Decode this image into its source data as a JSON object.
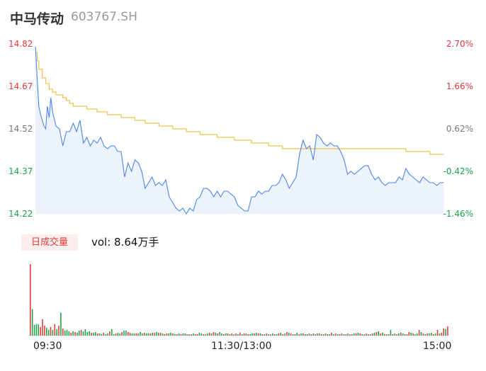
{
  "header": {
    "name": "中马传动",
    "code": "603767.SH"
  },
  "legend": {
    "badge": "日成交量",
    "vol_label": "vol: 8.64万手"
  },
  "colors": {
    "price": "#4a86e8",
    "avg": "#f5c04a",
    "up": "#e23b3b",
    "down": "#1aa34a",
    "fill": "#edf3fd"
  },
  "chart_data": [
    {
      "type": "line",
      "title": "",
      "xlabel": "",
      "ylabel": "",
      "ylim": [
        14.22,
        14.82
      ],
      "y_ticks": [
        "14.82",
        "14.67",
        "14.52",
        "14.37",
        "14.22"
      ],
      "y_right_ticks": [
        "2.70%",
        "1.66%",
        "0.62%",
        "-0.42%",
        "-1.46%"
      ],
      "x_ticks": [
        "09:30",
        "11:30/13:00",
        "15:00"
      ],
      "series": [
        {
          "role": "price",
          "x": [
            0,
            1,
            2,
            3,
            4,
            5,
            6,
            7,
            8,
            9,
            10,
            12,
            14,
            16,
            18,
            20,
            22,
            24,
            26,
            28,
            30,
            32,
            34,
            36,
            38,
            40,
            42,
            44,
            46,
            48,
            50,
            52,
            54,
            56,
            58,
            60,
            62,
            64,
            66,
            68,
            70,
            72,
            74,
            76,
            78,
            80,
            82,
            84,
            86,
            88,
            90,
            92,
            94,
            96,
            98,
            100,
            102,
            104,
            106,
            108,
            110,
            112,
            114,
            116,
            118,
            120,
            122,
            124,
            126,
            128,
            130,
            132,
            134,
            136,
            138,
            140,
            142,
            144,
            146,
            148,
            150,
            152,
            154,
            156,
            158,
            160,
            162,
            164,
            166,
            168,
            170,
            172,
            174,
            176,
            178,
            180,
            182,
            184,
            186,
            188,
            190,
            192,
            194,
            196,
            198,
            200,
            202,
            204,
            206,
            208,
            210,
            212,
            214,
            216,
            218,
            220,
            222,
            224,
            226,
            228,
            230,
            232,
            234,
            236,
            238
          ],
          "values": [
            14.81,
            14.7,
            14.6,
            14.57,
            14.55,
            14.53,
            14.52,
            14.6,
            14.56,
            14.63,
            14.58,
            14.53,
            14.52,
            14.46,
            14.51,
            14.51,
            14.54,
            14.51,
            14.55,
            14.47,
            14.49,
            14.46,
            14.48,
            14.47,
            14.49,
            14.46,
            14.45,
            14.46,
            14.46,
            14.44,
            14.44,
            14.35,
            14.4,
            14.37,
            14.41,
            14.4,
            14.37,
            14.31,
            14.33,
            14.35,
            14.32,
            14.33,
            14.32,
            14.34,
            14.28,
            14.26,
            14.24,
            14.23,
            14.24,
            14.22,
            14.24,
            14.23,
            14.27,
            14.28,
            14.31,
            14.31,
            14.3,
            14.28,
            14.3,
            14.28,
            14.3,
            14.3,
            14.29,
            14.28,
            14.25,
            14.24,
            14.23,
            14.23,
            14.28,
            14.28,
            14.3,
            14.29,
            14.3,
            14.3,
            14.32,
            14.32,
            14.33,
            14.36,
            14.34,
            14.31,
            14.33,
            14.35,
            14.43,
            14.48,
            14.45,
            14.46,
            14.41,
            14.5,
            14.49,
            14.47,
            14.46,
            14.47,
            14.46,
            14.46,
            14.44,
            14.41,
            14.36,
            14.37,
            14.36,
            14.37,
            14.38,
            14.39,
            14.39,
            14.36,
            14.34,
            14.35,
            14.33,
            14.32,
            14.33,
            14.33,
            14.33,
            14.35,
            14.34,
            14.38,
            14.36,
            14.35,
            14.34,
            14.33,
            14.35,
            14.34,
            14.33,
            14.33,
            14.32,
            14.33,
            14.33
          ]
        },
        {
          "role": "avg",
          "x": [
            0,
            1,
            2,
            4,
            6,
            8,
            10,
            12,
            14,
            16,
            18,
            20,
            22,
            26,
            30,
            36,
            42,
            50,
            58,
            64,
            72,
            80,
            88,
            92,
            96,
            106,
            116,
            126,
            136,
            144,
            150,
            160,
            168,
            176,
            184,
            192,
            200,
            208,
            216,
            224,
            230,
            238
          ],
          "values": [
            14.79,
            14.76,
            14.73,
            14.7,
            14.68,
            14.66,
            14.65,
            14.64,
            14.64,
            14.63,
            14.62,
            14.61,
            14.6,
            14.6,
            14.59,
            14.58,
            14.57,
            14.56,
            14.55,
            14.54,
            14.53,
            14.52,
            14.51,
            14.51,
            14.5,
            14.49,
            14.48,
            14.47,
            14.46,
            14.45,
            14.45,
            14.45,
            14.45,
            14.45,
            14.45,
            14.45,
            14.45,
            14.45,
            14.44,
            14.44,
            14.43,
            14.43
          ]
        }
      ]
    },
    {
      "type": "bar",
      "title": "",
      "legend": "日成交量",
      "ylim": [
        0,
        100
      ],
      "values": [
        100,
        37,
        15,
        16,
        16,
        12,
        23,
        14,
        11,
        8,
        12,
        8,
        16,
        9,
        14,
        32,
        10,
        7,
        8,
        6,
        4,
        6,
        5,
        4,
        7,
        8,
        6,
        9,
        5,
        6,
        4,
        4,
        5,
        3,
        3,
        2,
        4,
        2,
        3,
        6,
        9,
        2,
        3,
        4,
        3,
        5,
        7,
        7,
        5,
        4,
        3,
        3,
        3,
        3,
        5,
        3,
        4,
        3,
        3,
        3,
        4,
        4,
        5,
        4,
        4,
        3,
        2,
        3,
        3,
        4,
        3,
        2,
        2,
        3,
        2,
        3,
        3,
        2,
        2,
        2,
        3,
        2,
        2,
        4,
        3,
        2,
        2,
        3,
        4,
        3,
        5,
        4,
        3,
        5,
        3,
        2,
        3,
        3,
        2,
        3,
        2,
        3,
        2,
        4,
        2,
        3,
        3,
        2,
        2,
        3,
        3,
        4,
        3,
        3,
        2,
        2,
        3,
        2,
        2,
        3,
        2,
        2,
        3,
        4,
        2,
        3,
        5,
        4,
        3,
        2,
        2,
        4,
        2,
        3,
        3,
        2,
        2,
        3,
        2,
        3,
        2,
        3,
        3,
        2,
        2,
        3,
        2,
        2,
        4,
        2,
        3,
        2,
        2,
        3,
        2,
        2,
        3,
        2,
        2,
        3,
        3,
        4,
        3,
        2,
        2,
        3,
        2,
        2,
        3,
        4,
        5,
        6,
        3,
        4,
        2,
        2,
        2,
        8,
        2,
        3,
        2,
        3,
        4,
        3,
        2,
        2,
        5,
        4,
        3,
        2,
        3,
        8,
        5,
        3,
        2,
        3,
        3,
        4,
        2,
        3,
        8,
        3,
        4,
        10,
        9,
        13
      ],
      "up": [
        1,
        0,
        0,
        0,
        0,
        1,
        1,
        1,
        0,
        0,
        1,
        0,
        1,
        0,
        1,
        0,
        1,
        0,
        0,
        0,
        1,
        0,
        1,
        0,
        0,
        1,
        0,
        0,
        0,
        0,
        1,
        0,
        0,
        1,
        0,
        0,
        1,
        0,
        0,
        1,
        0,
        0,
        1,
        0,
        0,
        1,
        0,
        0,
        1,
        1,
        0,
        0,
        1,
        1,
        0,
        0,
        1,
        0,
        0,
        1,
        0,
        1,
        0,
        0,
        1,
        0,
        1,
        1,
        0,
        0,
        1,
        0,
        1,
        0,
        1,
        0,
        0,
        1,
        0,
        1,
        0,
        1,
        1,
        0,
        0,
        1,
        0,
        0,
        1,
        0,
        1,
        0,
        1,
        0,
        0,
        1,
        0,
        1,
        0,
        1,
        0,
        1,
        0,
        1,
        0,
        1,
        0,
        1,
        0,
        0,
        1,
        0,
        1,
        0,
        1,
        0,
        1,
        0,
        1,
        0,
        1,
        0,
        1,
        0,
        1,
        0,
        1,
        0,
        1,
        0,
        1,
        0,
        1,
        0,
        1,
        0,
        1,
        0,
        1,
        0,
        1,
        0,
        1,
        0,
        1,
        0,
        1,
        0,
        1,
        0,
        1,
        0,
        1,
        0,
        1,
        0,
        1,
        0,
        1,
        0,
        1,
        0,
        1,
        0,
        1,
        0,
        1,
        0,
        1,
        0,
        1,
        0,
        1,
        0,
        1,
        0,
        1,
        0,
        1,
        0,
        1,
        0,
        1,
        0,
        1,
        0,
        1,
        0,
        1,
        0,
        0,
        1,
        0,
        1,
        0,
        1,
        0,
        0,
        1,
        0,
        1,
        0,
        1,
        1,
        0,
        1,
        1
      ]
    }
  ]
}
